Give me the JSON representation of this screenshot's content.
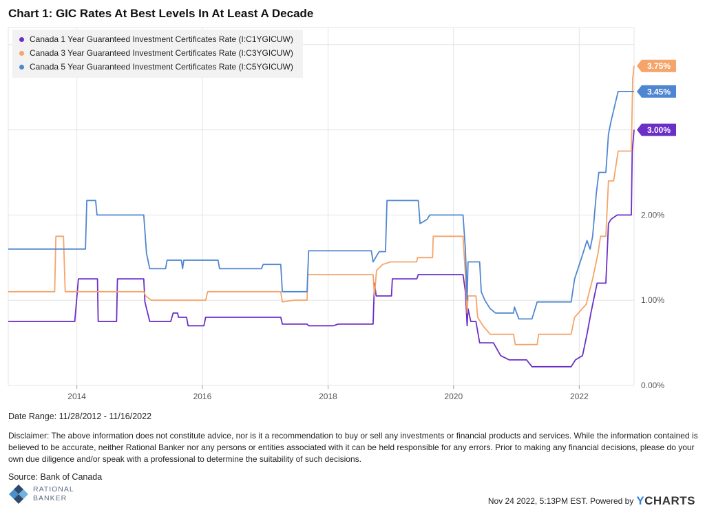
{
  "title": "Chart 1:  GIC Rates At Best Levels In At Least A Decade",
  "legend": [
    {
      "label": "Canada 1 Year Guaranteed Investment Certificates Rate (I:C1YGICUW)",
      "color": "#6a2fc6"
    },
    {
      "label": "Canada 3 Year Guaranteed Investment Certificates Rate (I:C3YGICUW)",
      "color": "#f5a46a"
    },
    {
      "label": "Canada 5 Year Guaranteed Investment Certificates Rate (I:C5YGICUW)",
      "color": "#4f86d1"
    }
  ],
  "date_range": "Date Range: 11/28/2012 - 11/16/2022",
  "disclaimer": "Disclaimer:  The above information does not constitute advice, nor is it a recommendation to buy or sell any investments or financial products and services.  While the information contained is believed to be accurate, neither Rational Banker nor any persons or entities associated with it can be held responsible for any errors.  Prior to making any financial decisions, please do your own due diligence and/or speak with a professional to determine the suitability of such decisions.",
  "source": "Source: Bank of Canada",
  "brand": {
    "line1": "RATIONAL",
    "line2": "BANKER"
  },
  "footer": {
    "timestamp": "Nov 24 2022, 5:13PM EST. Powered by",
    "ycharts_y": "Y",
    "ycharts_rest": "CHARTS"
  },
  "chart_data": {
    "type": "line",
    "title": "Chart 1:  GIC Rates At Best Levels In At Least A Decade",
    "xlim": [
      "2012-11-28",
      "2022-11-16"
    ],
    "x_ticks": [
      "2014",
      "2016",
      "2018",
      "2020",
      "2022"
    ],
    "ylim": [
      0,
      4.2
    ],
    "y_ticks": [
      "0.00%",
      "1.00%",
      "2.00%"
    ],
    "grid": true,
    "legend_position": "top-left",
    "end_labels": [
      {
        "series": 1,
        "text": "3.75%"
      },
      {
        "series": 2,
        "text": "3.45%"
      },
      {
        "series": 0,
        "text": "3.00%"
      }
    ],
    "series": [
      {
        "name": "Canada 1 Year Guaranteed Investment Certificates Rate (I:C1YGICUW)",
        "color": "#6a2fc6",
        "points": [
          [
            "2012-11-28",
            0.75
          ],
          [
            "2013-12-20",
            0.75
          ],
          [
            "2014-01-10",
            1.25
          ],
          [
            "2014-05-01",
            1.25
          ],
          [
            "2014-05-05",
            0.75
          ],
          [
            "2014-08-20",
            0.75
          ],
          [
            "2014-08-25",
            1.25
          ],
          [
            "2015-01-25",
            1.25
          ],
          [
            "2015-02-01",
            0.98
          ],
          [
            "2015-03-01",
            0.75
          ],
          [
            "2015-07-01",
            0.75
          ],
          [
            "2015-07-15",
            0.85
          ],
          [
            "2015-08-10",
            0.85
          ],
          [
            "2015-08-15",
            0.8
          ],
          [
            "2015-10-01",
            0.8
          ],
          [
            "2015-10-10",
            0.7
          ],
          [
            "2016-01-10",
            0.7
          ],
          [
            "2016-01-20",
            0.8
          ],
          [
            "2017-04-01",
            0.8
          ],
          [
            "2017-04-10",
            0.72
          ],
          [
            "2017-09-01",
            0.72
          ],
          [
            "2017-09-10",
            0.7
          ],
          [
            "2018-02-01",
            0.7
          ],
          [
            "2018-03-01",
            0.72
          ],
          [
            "2018-09-20",
            0.72
          ],
          [
            "2018-09-28",
            1.2
          ],
          [
            "2018-10-08",
            1.05
          ],
          [
            "2019-01-05",
            1.05
          ],
          [
            "2019-01-10",
            1.25
          ],
          [
            "2019-06-01",
            1.25
          ],
          [
            "2019-06-10",
            1.3
          ],
          [
            "2020-02-25",
            1.3
          ],
          [
            "2020-03-10",
            1.1
          ],
          [
            "2020-03-20",
            0.7
          ],
          [
            "2020-03-25",
            0.9
          ],
          [
            "2020-04-10",
            0.75
          ],
          [
            "2020-05-10",
            0.75
          ],
          [
            "2020-06-01",
            0.5
          ],
          [
            "2020-08-20",
            0.5
          ],
          [
            "2020-10-01",
            0.35
          ],
          [
            "2020-11-20",
            0.3
          ],
          [
            "2021-03-01",
            0.3
          ],
          [
            "2021-04-01",
            0.22
          ],
          [
            "2021-10-01",
            0.22
          ],
          [
            "2021-11-15",
            0.22
          ],
          [
            "2021-12-10",
            0.3
          ],
          [
            "2022-01-20",
            0.35
          ],
          [
            "2022-02-15",
            0.6
          ],
          [
            "2022-03-10",
            0.85
          ],
          [
            "2022-03-25",
            1.0
          ],
          [
            "2022-04-15",
            1.2
          ],
          [
            "2022-06-05",
            1.2
          ],
          [
            "2022-06-20",
            1.9
          ],
          [
            "2022-07-05",
            1.95
          ],
          [
            "2022-08-10",
            2.0
          ],
          [
            "2022-10-31",
            2.0
          ],
          [
            "2022-11-05",
            2.75
          ],
          [
            "2022-11-16",
            3.0
          ]
        ]
      },
      {
        "name": "Canada 3 Year Guaranteed Investment Certificates Rate (I:C3YGICUW)",
        "color": "#f5a46a",
        "points": [
          [
            "2012-11-28",
            1.1
          ],
          [
            "2013-08-25",
            1.1
          ],
          [
            "2013-09-01",
            1.75
          ],
          [
            "2013-10-15",
            1.75
          ],
          [
            "2013-10-25",
            1.1
          ],
          [
            "2015-01-25",
            1.1
          ],
          [
            "2015-02-05",
            1.05
          ],
          [
            "2015-03-10",
            1.0
          ],
          [
            "2016-01-20",
            1.0
          ],
          [
            "2016-02-01",
            1.1
          ],
          [
            "2017-04-01",
            1.1
          ],
          [
            "2017-04-10",
            0.98
          ],
          [
            "2017-06-15",
            1.0
          ],
          [
            "2017-09-01",
            1.0
          ],
          [
            "2017-09-05",
            1.3
          ],
          [
            "2018-09-20",
            1.3
          ],
          [
            "2018-09-28",
            1.05
          ],
          [
            "2018-10-10",
            1.35
          ],
          [
            "2018-11-15",
            1.42
          ],
          [
            "2019-01-01",
            1.45
          ],
          [
            "2019-06-01",
            1.45
          ],
          [
            "2019-06-05",
            1.5
          ],
          [
            "2019-09-01",
            1.5
          ],
          [
            "2019-09-05",
            1.75
          ],
          [
            "2020-02-25",
            1.75
          ],
          [
            "2020-03-10",
            1.3
          ],
          [
            "2020-03-20",
            0.85
          ],
          [
            "2020-03-25",
            1.05
          ],
          [
            "2020-05-10",
            1.05
          ],
          [
            "2020-05-20",
            0.8
          ],
          [
            "2020-06-20",
            0.7
          ],
          [
            "2020-08-01",
            0.6
          ],
          [
            "2020-12-15",
            0.6
          ],
          [
            "2020-12-25",
            0.48
          ],
          [
            "2021-05-01",
            0.48
          ],
          [
            "2021-05-10",
            0.6
          ],
          [
            "2021-10-01",
            0.6
          ],
          [
            "2021-11-15",
            0.6
          ],
          [
            "2021-12-05",
            0.8
          ],
          [
            "2022-02-10",
            0.95
          ],
          [
            "2022-03-20",
            1.25
          ],
          [
            "2022-04-20",
            1.55
          ],
          [
            "2022-05-05",
            1.75
          ],
          [
            "2022-06-05",
            1.75
          ],
          [
            "2022-06-20",
            2.4
          ],
          [
            "2022-07-20",
            2.4
          ],
          [
            "2022-08-15",
            2.75
          ],
          [
            "2022-10-31",
            2.75
          ],
          [
            "2022-11-08",
            3.6
          ],
          [
            "2022-11-16",
            3.75
          ]
        ]
      },
      {
        "name": "Canada 5 Year Guaranteed Investment Certificates Rate (I:C5YGICUW)",
        "color": "#4f86d1",
        "points": [
          [
            "2012-11-28",
            1.6
          ],
          [
            "2014-02-20",
            1.6
          ],
          [
            "2014-02-28",
            2.17
          ],
          [
            "2014-04-20",
            2.17
          ],
          [
            "2014-04-28",
            2.0
          ],
          [
            "2015-01-25",
            2.0
          ],
          [
            "2015-02-10",
            1.55
          ],
          [
            "2015-03-01",
            1.37
          ],
          [
            "2015-06-01",
            1.37
          ],
          [
            "2015-06-10",
            1.47
          ],
          [
            "2015-09-01",
            1.47
          ],
          [
            "2015-09-08",
            1.37
          ],
          [
            "2015-09-15",
            1.47
          ],
          [
            "2016-04-01",
            1.47
          ],
          [
            "2016-04-10",
            1.37
          ],
          [
            "2016-12-10",
            1.37
          ],
          [
            "2016-12-20",
            1.42
          ],
          [
            "2017-04-01",
            1.42
          ],
          [
            "2017-04-10",
            1.1
          ],
          [
            "2017-09-01",
            1.1
          ],
          [
            "2017-09-10",
            1.58
          ],
          [
            "2018-09-10",
            1.58
          ],
          [
            "2018-09-20",
            1.45
          ],
          [
            "2018-10-25",
            1.57
          ],
          [
            "2018-12-01",
            1.57
          ],
          [
            "2018-12-10",
            2.17
          ],
          [
            "2019-06-10",
            2.17
          ],
          [
            "2019-06-20",
            1.9
          ],
          [
            "2019-08-01",
            1.95
          ],
          [
            "2019-08-15",
            2.0
          ],
          [
            "2020-02-25",
            2.0
          ],
          [
            "2020-03-10",
            1.6
          ],
          [
            "2020-03-20",
            1.0
          ],
          [
            "2020-03-25",
            1.45
          ],
          [
            "2020-06-01",
            1.45
          ],
          [
            "2020-06-10",
            1.1
          ],
          [
            "2020-07-01",
            1.0
          ],
          [
            "2020-08-01",
            0.9
          ],
          [
            "2020-09-01",
            0.85
          ],
          [
            "2020-12-15",
            0.85
          ],
          [
            "2020-12-20",
            0.92
          ],
          [
            "2021-01-15",
            0.78
          ],
          [
            "2021-04-01",
            0.78
          ],
          [
            "2021-05-01",
            0.98
          ],
          [
            "2021-10-01",
            0.98
          ],
          [
            "2021-11-15",
            0.98
          ],
          [
            "2021-12-05",
            1.25
          ],
          [
            "2022-01-15",
            1.5
          ],
          [
            "2022-02-15",
            1.7
          ],
          [
            "2022-03-05",
            1.6
          ],
          [
            "2022-03-20",
            1.75
          ],
          [
            "2022-04-10",
            2.25
          ],
          [
            "2022-04-25",
            2.5
          ],
          [
            "2022-06-05",
            2.5
          ],
          [
            "2022-06-20",
            2.95
          ],
          [
            "2022-07-05",
            3.1
          ],
          [
            "2022-08-15",
            3.45
          ],
          [
            "2022-11-16",
            3.45
          ]
        ]
      }
    ]
  }
}
